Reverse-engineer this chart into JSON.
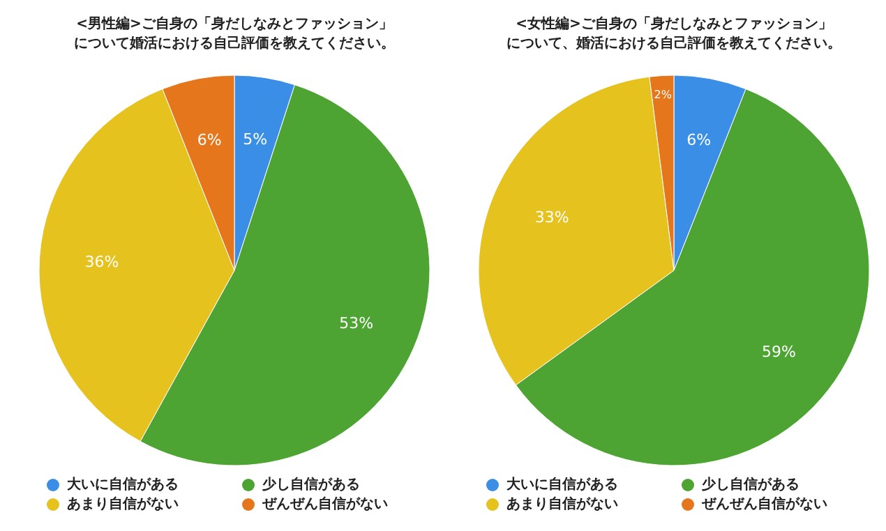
{
  "chart_data": [
    {
      "type": "pie",
      "title": "<男性編>ご自身の「身だしなみとファッション」について婚活における自己評価を教えてください。",
      "categories": [
        "大いに自信がある",
        "少し自信がある",
        "あまり自信がない",
        "ぜんぜん自信がない"
      ],
      "values": [
        5,
        53,
        36,
        6
      ],
      "value_labels": [
        "5%",
        "53%",
        "36%",
        "6%"
      ],
      "colors": [
        "#3a8ee6",
        "#4da432",
        "#e6c21e",
        "#e5761c"
      ],
      "legend": "bottom"
    },
    {
      "type": "pie",
      "title": "<女性編>ご自身の「身だしなみとファッション」について、婚活における自己評価を教えてください。",
      "categories": [
        "大いに自信がある",
        "少し自信がある",
        "あまり自信がない",
        "ぜんぜん自信がない"
      ],
      "values": [
        6,
        59,
        33,
        2
      ],
      "value_labels": [
        "6%",
        "59%",
        "33%",
        "2%"
      ],
      "colors": [
        "#3a8ee6",
        "#4da432",
        "#e6c21e",
        "#e5761c"
      ],
      "legend": "bottom"
    }
  ]
}
